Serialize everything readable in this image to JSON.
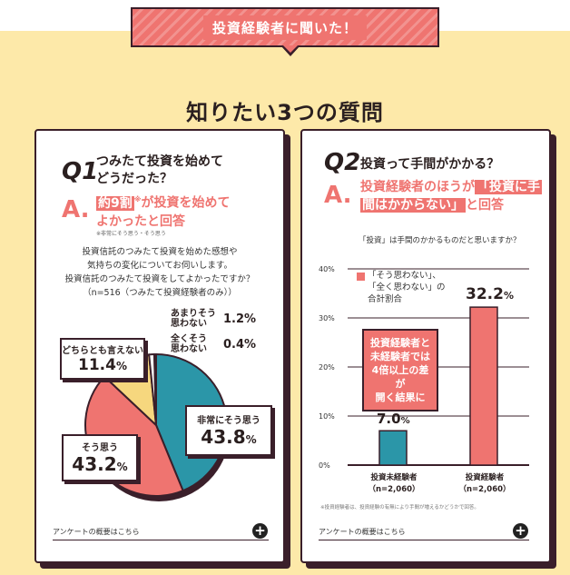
{
  "banner": {
    "label": "投資経験者に聞いた！"
  },
  "section_title": "知りたい3つの質問",
  "q1": {
    "num": "Q1",
    "question_line1": "つみたて投資を始めて",
    "question_line2": "どうだった？",
    "answer_mark": "A.",
    "answer_highlight": "約9割",
    "answer_sup": "※",
    "answer_rest1": "が投資を始めて",
    "answer_line2": "よかったと回答",
    "answer_note": "※非常にそう思う・そう思う",
    "desc_line1": "投資信託のつみたて投資を始めた感想や",
    "desc_line2": "気持ちの変化についてお伺いします。",
    "desc_line3": "投資信託のつみたて投資をしてよかったですか？",
    "desc_line4": "（n=516（つみたて投資経験者のみ））",
    "footer": "アンケートの概要はこちら",
    "plus": "+"
  },
  "q2": {
    "num": "Q2",
    "question": "投資って手間がかかる？",
    "answer_mark": "A.",
    "answer_pre": "投資経験者のほうが",
    "answer_highlight1": "「投資に手",
    "answer_highlight2": "間はかからない」",
    "answer_post": "と回答",
    "footer": "アンケートの概要はこちら",
    "plus": "+"
  },
  "pie_labels": {
    "s1_name": "非常にそう思う",
    "s1_val": "43.8",
    "s1_unit": "%",
    "s2_name": "そう思う",
    "s2_val": "43.2",
    "s2_unit": "%",
    "s3_name": "どちらとも言えない",
    "s3_val": "11.4",
    "s3_unit": "%",
    "s4_name1": "あまりそう",
    "s4_name2": "思わない",
    "s4_val": "1.2%",
    "s5_name1": "全くそう",
    "s5_name2": "思わない",
    "s5_val": "0.4%"
  },
  "bar_labels": {
    "chart_title": "「投資」は手間のかかるものだと思いますか？",
    "legend1": "「そう思わない」、",
    "legend2": "「全く思わない」の",
    "legend3": "合計割合",
    "callout1": "投資経験者と",
    "callout2": "未経験者では",
    "callout3": "4倍以上の差が",
    "callout4": "開く結果に",
    "b1_val": "7.0",
    "b1_unit": "%",
    "b2_val": "32.2",
    "b2_unit": "%",
    "b1_name": "投資未経験者",
    "b1_n": "（n=2,060）",
    "b2_name": "投資経験者",
    "b2_n": "（n=2,060）",
    "note": "※投資経験者は、投資経験の有無により手間が増えるかどうかで回答。"
  },
  "chart_data": [
    {
      "type": "pie",
      "categories": [
        "非常にそう思う",
        "そう思う",
        "どちらとも言えない",
        "あまりそう思わない",
        "全くそう思わない"
      ],
      "values": [
        43.8,
        43.2,
        11.4,
        1.2,
        0.4
      ],
      "colors": [
        "#2b96a8",
        "#ef7470",
        "#f6d77e",
        "#ffffff",
        "#ffffff"
      ]
    },
    {
      "type": "bar",
      "title": "「投資」は手間のかかるものだと思いますか？",
      "categories": [
        "投資未経験者",
        "投資経験者"
      ],
      "values": [
        7.0,
        32.2
      ],
      "colors": [
        "#2b96a8",
        "#ef7470"
      ],
      "ylim": [
        0,
        40
      ],
      "yticks": [
        "0%",
        "10%",
        "20%",
        "30%",
        "40%"
      ]
    }
  ]
}
